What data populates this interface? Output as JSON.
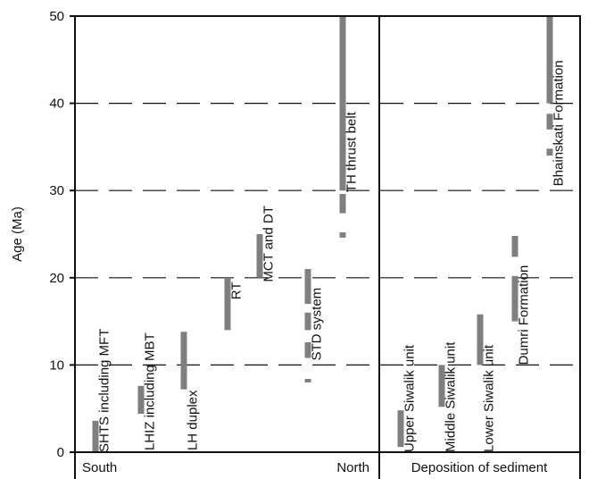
{
  "chart_data": {
    "type": "bar",
    "orientation": "vertical-ranges",
    "ylabel": "Age (Ma)",
    "ylim": [
      0,
      50
    ],
    "yticks": [
      0,
      10,
      20,
      30,
      40,
      50
    ],
    "grid": "dashed horizontal at 10, 20, 30, 40",
    "panels": [
      {
        "name": "structures",
        "x_start_label": "South",
        "x_end_label": "North",
        "categories": [
          {
            "label": "SHTS including MFT",
            "segments": [
              [
                0,
                3.6
              ]
            ]
          },
          {
            "label": "LHIZ including MBT",
            "segments": [
              [
                4.4,
                7.6
              ]
            ]
          },
          {
            "label": "LH duplex",
            "segments": [
              [
                7.2,
                13.8
              ]
            ]
          },
          {
            "label": "RT",
            "segments": [
              [
                14,
                20
              ]
            ]
          },
          {
            "label": "MCT and DT",
            "segments": [
              [
                20,
                25
              ]
            ]
          },
          {
            "label": "STD system",
            "segments": [
              [
                8,
                8.4
              ],
              [
                10.8,
                12.6
              ],
              [
                14,
                16
              ],
              [
                17,
                21
              ]
            ]
          },
          {
            "label": "TH thrust belt",
            "segments": [
              [
                24.6,
                25.2
              ],
              [
                27.4,
                29.6
              ],
              [
                30,
                50
              ]
            ]
          }
        ]
      },
      {
        "name": "sedimentation",
        "footer": "Deposition of sediment",
        "categories": [
          {
            "label": "Upper Siwalik unit",
            "segments": [
              [
                0.6,
                4.8
              ]
            ]
          },
          {
            "label": "Middle Siwalik unit",
            "segments": [
              [
                5.2,
                10
              ]
            ]
          },
          {
            "label": "Lower Siwalik unit",
            "segments": [
              [
                10,
                15.8
              ]
            ]
          },
          {
            "label": "Dumri Formation",
            "segments": [
              [
                15,
                20.2
              ],
              [
                22.4,
                24.8
              ]
            ]
          },
          {
            "label": "Bhainskati Formation",
            "segments": [
              [
                34,
                34.8
              ],
              [
                37,
                38.8
              ],
              [
                40,
                50
              ]
            ]
          }
        ]
      }
    ],
    "colors": {
      "bar": "#7f7f7f",
      "axis": "#111111",
      "grid": "#111111"
    }
  }
}
